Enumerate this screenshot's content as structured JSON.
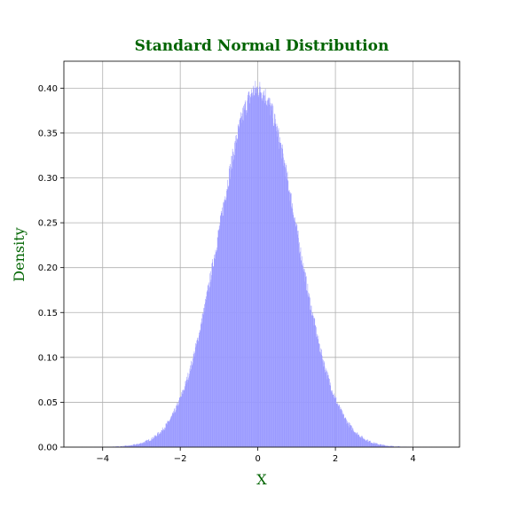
{
  "chart_data": {
    "type": "bar",
    "title": "Standard Normal Distribution",
    "xlabel": "X",
    "ylabel": "Density",
    "xlim": [
      -5.0,
      5.2
    ],
    "ylim": [
      0,
      0.43
    ],
    "grid": true,
    "x_ticks": [
      -4,
      -2,
      0,
      2,
      4
    ],
    "x_tick_labels": [
      "−4",
      "−2",
      "0",
      "2",
      "4"
    ],
    "y_ticks": [
      0.0,
      0.05,
      0.1,
      0.15,
      0.2,
      0.25,
      0.3,
      0.35,
      0.4
    ],
    "y_tick_labels": [
      "0.00",
      "0.05",
      "0.10",
      "0.15",
      "0.20",
      "0.25",
      "0.30",
      "0.35",
      "0.40"
    ],
    "histogram": {
      "distribution": "standard normal",
      "range": [
        -4.8,
        4.7
      ],
      "peak_density": 0.41,
      "bins": 1000,
      "bar_color": "#9999ff"
    },
    "colors": {
      "title": "#006400",
      "axis_labels": "#006400",
      "bars": "#9999ff",
      "grid": "#b0b0b0"
    }
  }
}
